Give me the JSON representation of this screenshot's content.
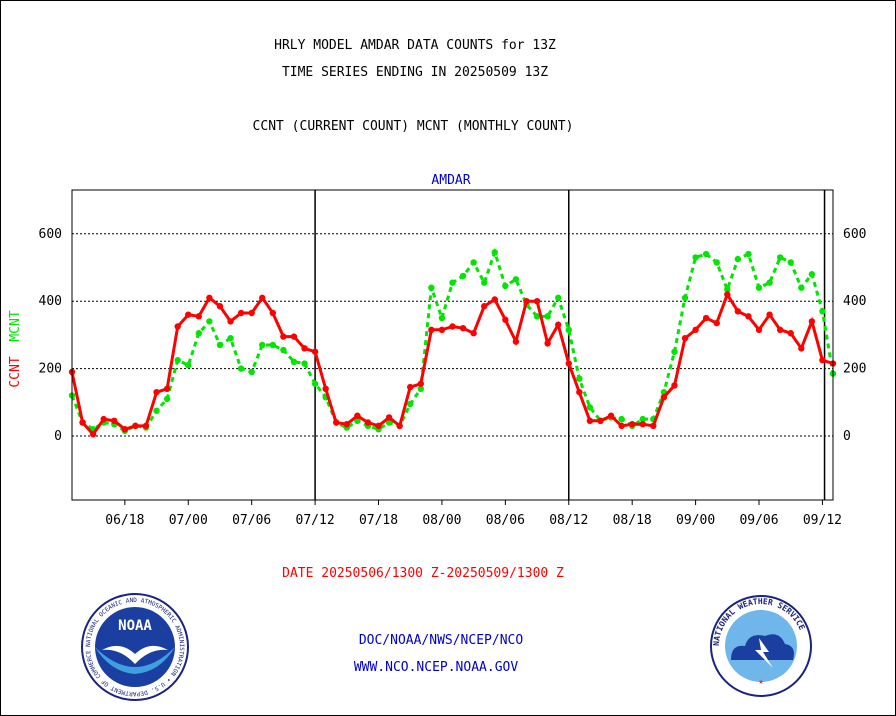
{
  "header": {
    "title_line1": "HRLY MODEL AMDAR DATA COUNTS for 13Z",
    "title_line2": "TIME SERIES ENDING IN 20250509 13Z",
    "legend_line": "CCNT (CURRENT COUNT) MCNT (MONTHLY COUNT)"
  },
  "footer": {
    "date_range": "DATE 20250506/1300 Z-20250509/1300 Z",
    "link1": "DOC/NOAA/NWS/NCEP/NCO",
    "link2": "WWW.NCO.NCEP.NOAA.GOV"
  },
  "logos": {
    "noaa_text": "NOAA",
    "noaa_ring": "NATIONAL OCEANIC AND ATMOSPHERIC ADMINISTRATION • U.S. DEPARTMENT OF COMMERCE",
    "nws_ring": "NATIONAL WEATHER SERVICE"
  },
  "colors": {
    "ccnt": "#ff0000",
    "mcnt": "#00e600",
    "blue_text": "#0000cc",
    "axis": "#000000"
  },
  "chart_data": {
    "type": "line",
    "title": "AMDAR",
    "ylabel_ccnt": "CCNT",
    "ylabel_mcnt": "MCNT",
    "ylim": [
      -190,
      730
    ],
    "y_ticks": [
      0,
      200,
      400,
      600
    ],
    "x_ticks": [
      "06/18",
      "07/00",
      "07/06",
      "07/12",
      "07/18",
      "08/00",
      "08/06",
      "08/12",
      "08/18",
      "09/00",
      "09/06",
      "09/12"
    ],
    "x_tick_hours": [
      5,
      11,
      17,
      23,
      29,
      35,
      41,
      47,
      53,
      59,
      65,
      71
    ],
    "day_boundaries_hours": [
      23,
      47,
      71.2
    ],
    "x_hours": [
      0,
      1,
      2,
      3,
      4,
      5,
      6,
      7,
      8,
      9,
      10,
      11,
      12,
      13,
      14,
      15,
      16,
      17,
      18,
      19,
      20,
      21,
      22,
      23,
      24,
      25,
      26,
      27,
      28,
      29,
      30,
      31,
      32,
      33,
      34,
      35,
      36,
      37,
      38,
      39,
      40,
      41,
      42,
      43,
      44,
      45,
      46,
      47,
      48,
      49,
      50,
      51,
      52,
      53,
      54,
      55,
      56,
      57,
      58,
      59,
      60,
      61,
      62,
      63,
      64,
      65,
      66,
      67,
      68,
      69,
      70,
      71,
      72
    ],
    "series": [
      {
        "name": "CCNT",
        "color": "#ff0000",
        "values": [
          190,
          40,
          5,
          50,
          45,
          20,
          30,
          30,
          130,
          140,
          325,
          360,
          355,
          410,
          385,
          340,
          365,
          365,
          410,
          365,
          295,
          295,
          260,
          250,
          140,
          40,
          35,
          60,
          40,
          30,
          55,
          30,
          145,
          155,
          315,
          315,
          325,
          320,
          305,
          385,
          405,
          345,
          280,
          400,
          400,
          275,
          330,
          215,
          130,
          45,
          45,
          60,
          30,
          35,
          35,
          30,
          115,
          150,
          290,
          315,
          350,
          335,
          420,
          370,
          355,
          315,
          360,
          315,
          305,
          260,
          340,
          225,
          215
        ]
      },
      {
        "name": "MCNT",
        "color": "#00e600",
        "values": [
          120,
          40,
          20,
          40,
          35,
          15,
          30,
          25,
          75,
          110,
          225,
          210,
          305,
          340,
          270,
          290,
          200,
          190,
          270,
          270,
          255,
          220,
          215,
          155,
          115,
          40,
          25,
          45,
          30,
          20,
          40,
          30,
          95,
          140,
          440,
          350,
          455,
          475,
          515,
          455,
          545,
          445,
          465,
          390,
          355,
          355,
          410,
          315,
          170,
          85,
          45,
          55,
          50,
          30,
          50,
          50,
          130,
          250,
          410,
          530,
          540,
          515,
          435,
          525,
          540,
          440,
          455,
          530,
          515,
          440,
          480,
          370,
          185
        ]
      }
    ]
  }
}
